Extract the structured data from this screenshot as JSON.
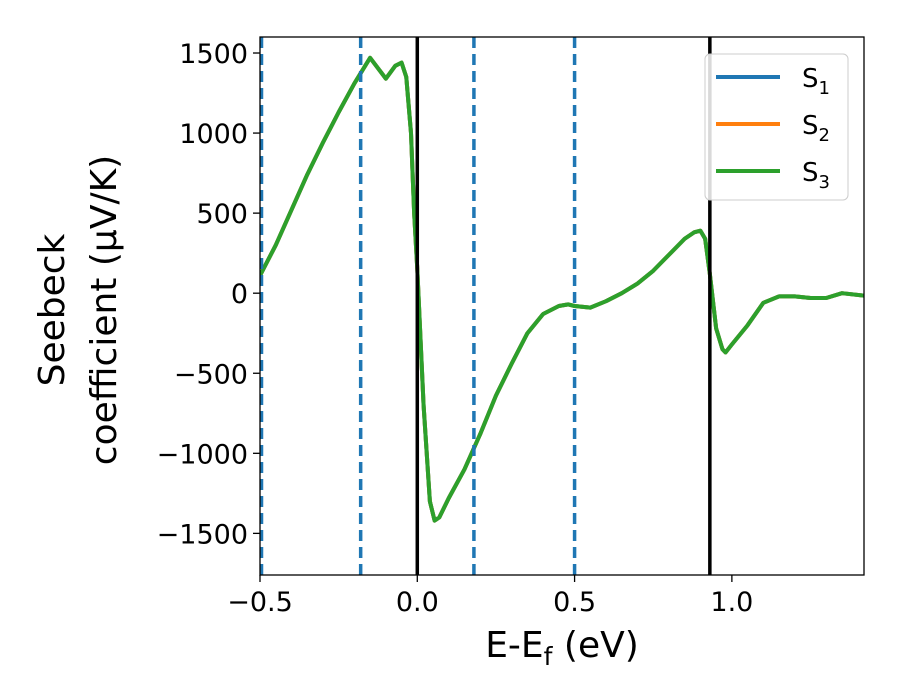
{
  "chart_data": {
    "type": "line",
    "xlabel": "E-E_f (eV)",
    "xlabel_main": "E-E",
    "xlabel_sub": "f",
    "xlabel_tail": " (eV)",
    "ylabel_line1": "Seebeck",
    "ylabel_line2": "coefficient  (μV/K)",
    "xlim": [
      -0.5,
      1.42
    ],
    "ylim": [
      -1760,
      1600
    ],
    "xticks": [
      -0.5,
      0.0,
      0.5,
      1.0
    ],
    "xtick_labels": [
      "−0.5",
      "0.0",
      "0.5",
      "1.0"
    ],
    "yticks": [
      -1500,
      -1000,
      -500,
      0,
      500,
      1000,
      1500
    ],
    "ytick_labels": [
      "−1500",
      "−1000",
      "−500",
      "0",
      "500",
      "1000",
      "1500"
    ],
    "grid": false,
    "legend_position": "top-right",
    "vlines_solid": {
      "x": [
        0.0,
        0.93
      ],
      "color": "#000000"
    },
    "vlines_dashed": {
      "x": [
        -0.5,
        -0.18,
        0.18,
        0.5
      ],
      "color": "#1f77b4"
    },
    "series": [
      {
        "name": "S1",
        "label_main": "S",
        "label_sub": "1",
        "color": "#1f77b4",
        "x": [
          -0.5,
          -0.45,
          -0.4,
          -0.35,
          -0.3,
          -0.25,
          -0.2,
          -0.15,
          -0.1,
          -0.07,
          -0.05,
          -0.035,
          -0.02,
          -0.01,
          0.0,
          0.02,
          0.04,
          0.055,
          0.07,
          0.1,
          0.15,
          0.2,
          0.25,
          0.3,
          0.35,
          0.4,
          0.45,
          0.48,
          0.5,
          0.55,
          0.6,
          0.65,
          0.7,
          0.75,
          0.8,
          0.85,
          0.88,
          0.9,
          0.915,
          0.93,
          0.95,
          0.97,
          0.98,
          1.0,
          1.05,
          1.1,
          1.15,
          1.2,
          1.25,
          1.3,
          1.35,
          1.42
        ],
        "y": [
          110,
          300,
          520,
          740,
          940,
          1130,
          1310,
          1470,
          1340,
          1420,
          1440,
          1350,
          1000,
          500,
          150,
          -700,
          -1300,
          -1420,
          -1400,
          -1280,
          -1100,
          -880,
          -640,
          -440,
          -250,
          -130,
          -80,
          -70,
          -80,
          -90,
          -50,
          0,
          60,
          140,
          240,
          340,
          380,
          390,
          340,
          120,
          -220,
          -350,
          -370,
          -320,
          -200,
          -60,
          -20,
          -20,
          -30,
          -30,
          0,
          -15
        ]
      },
      {
        "name": "S2",
        "label_main": "S",
        "label_sub": "2",
        "color": "#ff7f0e",
        "x": [
          -0.5,
          -0.45,
          -0.4,
          -0.35,
          -0.3,
          -0.25,
          -0.2,
          -0.15,
          -0.1,
          -0.07,
          -0.05,
          -0.035,
          -0.02,
          -0.01,
          0.0,
          0.02,
          0.04,
          0.055,
          0.07,
          0.1,
          0.15,
          0.2,
          0.25,
          0.3,
          0.35,
          0.4,
          0.45,
          0.48,
          0.5,
          0.55,
          0.6,
          0.65,
          0.7,
          0.75,
          0.8,
          0.85,
          0.88,
          0.9,
          0.915,
          0.93,
          0.95,
          0.97,
          0.98,
          1.0,
          1.05,
          1.1,
          1.15,
          1.2,
          1.25,
          1.3,
          1.35,
          1.42
        ],
        "y": [
          110,
          300,
          520,
          740,
          940,
          1130,
          1310,
          1470,
          1340,
          1420,
          1440,
          1350,
          1000,
          500,
          150,
          -700,
          -1300,
          -1420,
          -1400,
          -1280,
          -1100,
          -880,
          -640,
          -440,
          -250,
          -130,
          -80,
          -70,
          -80,
          -90,
          -50,
          0,
          60,
          140,
          240,
          340,
          380,
          390,
          340,
          120,
          -220,
          -350,
          -370,
          -320,
          -200,
          -60,
          -20,
          -20,
          -30,
          -30,
          0,
          -15
        ]
      },
      {
        "name": "S3",
        "label_main": "S",
        "label_sub": "3",
        "color": "#2ca02c",
        "x": [
          -0.5,
          -0.45,
          -0.4,
          -0.35,
          -0.3,
          -0.25,
          -0.2,
          -0.15,
          -0.1,
          -0.07,
          -0.05,
          -0.035,
          -0.02,
          -0.01,
          0.0,
          0.02,
          0.04,
          0.055,
          0.07,
          0.1,
          0.15,
          0.2,
          0.25,
          0.3,
          0.35,
          0.4,
          0.45,
          0.48,
          0.5,
          0.55,
          0.6,
          0.65,
          0.7,
          0.75,
          0.8,
          0.85,
          0.88,
          0.9,
          0.915,
          0.93,
          0.95,
          0.97,
          0.98,
          1.0,
          1.05,
          1.1,
          1.15,
          1.2,
          1.25,
          1.3,
          1.35,
          1.42
        ],
        "y": [
          110,
          300,
          520,
          740,
          940,
          1130,
          1310,
          1470,
          1340,
          1420,
          1440,
          1350,
          1000,
          500,
          150,
          -700,
          -1300,
          -1420,
          -1400,
          -1280,
          -1100,
          -880,
          -640,
          -440,
          -250,
          -130,
          -80,
          -70,
          -80,
          -90,
          -50,
          0,
          60,
          140,
          240,
          340,
          380,
          390,
          340,
          120,
          -220,
          -350,
          -370,
          -320,
          -200,
          -60,
          -20,
          -20,
          -30,
          -30,
          0,
          -15
        ]
      }
    ]
  }
}
